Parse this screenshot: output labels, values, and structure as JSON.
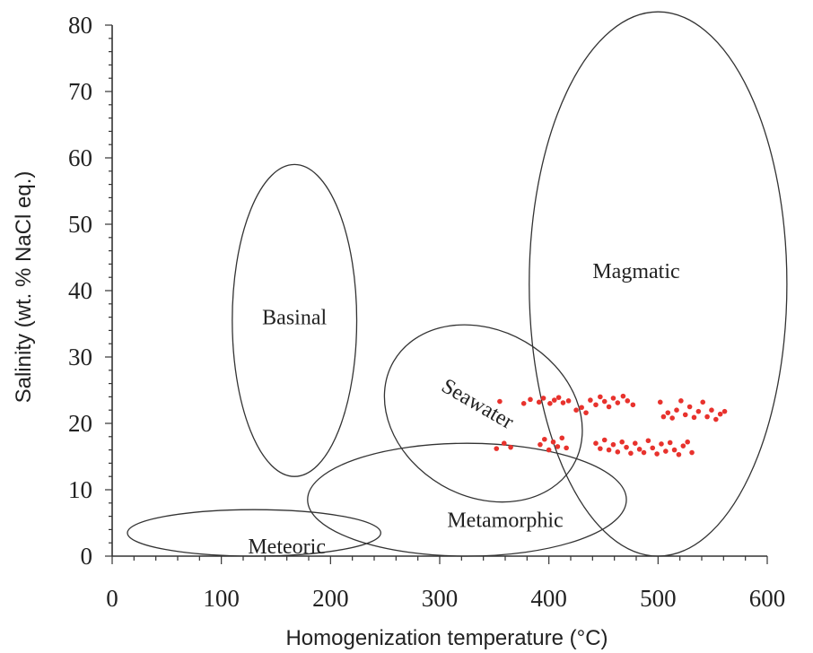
{
  "chart_data": {
    "type": "scatter",
    "title": "",
    "xlabel": "Homogenization temperature (°C)",
    "ylabel": "Salinity (wt. % NaCl eq.)",
    "xlim": [
      0,
      600
    ],
    "ylim": [
      0,
      80
    ],
    "xticks": [
      "0",
      "100",
      "200",
      "300",
      "400",
      "500",
      "600"
    ],
    "yticks": [
      "0",
      "10",
      "20",
      "30",
      "40",
      "50",
      "60",
      "70",
      "80"
    ],
    "grid": false,
    "regions": [
      {
        "name": "Basinal",
        "cx": 167,
        "cy": 35.5,
        "rx": 57,
        "ry": 23.5,
        "rotation": 0
      },
      {
        "name": "Seawater",
        "cx": 340,
        "cy": 21.5,
        "rx": 95,
        "ry": 12.5,
        "rotation": 30
      },
      {
        "name": "Metamorphic",
        "cx": 325,
        "cy": 8.5,
        "rx": 146,
        "ry": 8.5,
        "rotation": 0
      },
      {
        "name": "Meteoric",
        "cx": 130,
        "cy": 3.5,
        "rx": 116,
        "ry": 3.5,
        "rotation": 0
      },
      {
        "name": "Magmatic",
        "cx": 500,
        "cy": 41,
        "rx": 118,
        "ry": 41,
        "rotation": 0
      }
    ],
    "series": [
      {
        "color": "#e8322d",
        "points": [
          [
            355,
            23.3
          ],
          [
            377,
            23.0
          ],
          [
            383,
            23.6
          ],
          [
            391,
            23.2
          ],
          [
            395,
            23.8
          ],
          [
            401,
            23.0
          ],
          [
            405,
            23.5
          ],
          [
            409,
            23.9
          ],
          [
            413,
            23.1
          ],
          [
            418,
            23.4
          ],
          [
            425,
            22.0
          ],
          [
            430,
            22.4
          ],
          [
            434,
            21.6
          ],
          [
            438,
            23.5
          ],
          [
            443,
            22.8
          ],
          [
            447,
            24.0
          ],
          [
            451,
            23.3
          ],
          [
            455,
            22.5
          ],
          [
            459,
            23.8
          ],
          [
            463,
            23.1
          ],
          [
            468,
            24.1
          ],
          [
            472,
            23.4
          ],
          [
            477,
            22.8
          ],
          [
            502,
            23.2
          ],
          [
            505,
            21.0
          ],
          [
            509,
            21.6
          ],
          [
            513,
            20.8
          ],
          [
            517,
            22.0
          ],
          [
            521,
            23.4
          ],
          [
            525,
            21.3
          ],
          [
            529,
            22.5
          ],
          [
            533,
            20.9
          ],
          [
            537,
            21.8
          ],
          [
            541,
            23.2
          ],
          [
            545,
            21.0
          ],
          [
            549,
            22.0
          ],
          [
            553,
            20.6
          ],
          [
            557,
            21.4
          ],
          [
            561,
            21.8
          ],
          [
            352,
            16.2
          ],
          [
            359,
            17.0
          ],
          [
            365,
            16.4
          ],
          [
            392,
            16.8
          ],
          [
            396,
            17.6
          ],
          [
            400,
            16.0
          ],
          [
            404,
            17.2
          ],
          [
            408,
            16.5
          ],
          [
            412,
            17.8
          ],
          [
            416,
            16.3
          ],
          [
            443,
            17.0
          ],
          [
            447,
            16.2
          ],
          [
            451,
            17.5
          ],
          [
            455,
            16.0
          ],
          [
            459,
            16.8
          ],
          [
            463,
            15.7
          ],
          [
            467,
            17.2
          ],
          [
            471,
            16.4
          ],
          [
            475,
            15.5
          ],
          [
            479,
            17.0
          ],
          [
            483,
            16.1
          ],
          [
            487,
            15.6
          ],
          [
            491,
            17.4
          ],
          [
            495,
            16.3
          ],
          [
            499,
            15.4
          ],
          [
            503,
            16.9
          ],
          [
            507,
            15.8
          ],
          [
            511,
            17.1
          ],
          [
            515,
            16.0
          ],
          [
            519,
            15.3
          ],
          [
            523,
            16.6
          ],
          [
            527,
            17.2
          ],
          [
            531,
            15.6
          ]
        ]
      }
    ]
  }
}
